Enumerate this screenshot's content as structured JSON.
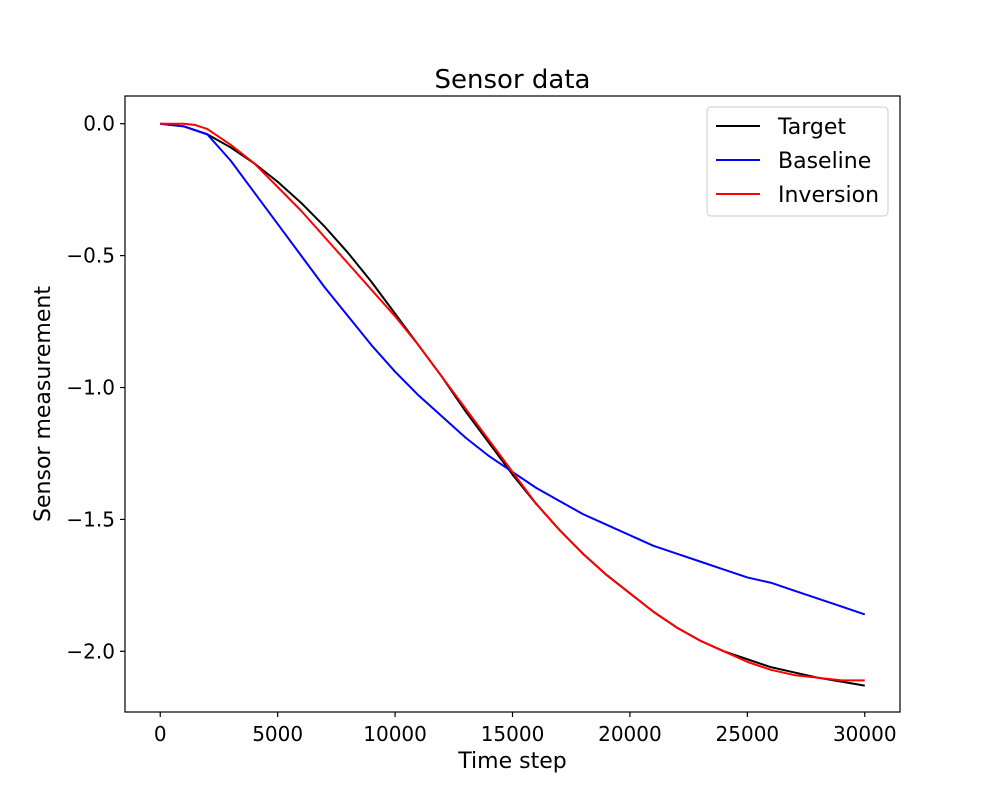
{
  "chart_data": {
    "type": "line",
    "title": "Sensor data",
    "xlabel": "Time step",
    "ylabel": "Sensor measurement",
    "xlim": [
      -1500,
      31500
    ],
    "ylim": [
      -2.23,
      0.105
    ],
    "x_ticks": [
      0,
      5000,
      10000,
      15000,
      20000,
      25000,
      30000
    ],
    "y_ticks": [
      0.0,
      -0.5,
      -1.0,
      -1.5,
      -2.0
    ],
    "x_tick_labels": [
      "0",
      "5000",
      "10000",
      "15000",
      "20000",
      "25000",
      "30000"
    ],
    "y_tick_labels": [
      "0.0",
      "−0.5",
      "−1.0",
      "−1.5",
      "−2.0"
    ],
    "grid": false,
    "legend_position": "top-right",
    "series": [
      {
        "name": "Target",
        "color": "#000000",
        "x": [
          0,
          1000,
          2000,
          3000,
          4000,
          5000,
          6000,
          7000,
          8000,
          9000,
          10000,
          11000,
          12000,
          13000,
          14000,
          15000,
          16000,
          17000,
          18000,
          19000,
          20000,
          21000,
          22000,
          23000,
          24000,
          25000,
          26000,
          27000,
          28000,
          29000,
          30000
        ],
        "y": [
          0.0,
          -0.01,
          -0.04,
          -0.09,
          -0.15,
          -0.22,
          -0.3,
          -0.39,
          -0.49,
          -0.6,
          -0.72,
          -0.84,
          -0.96,
          -1.09,
          -1.21,
          -1.33,
          -1.44,
          -1.54,
          -1.63,
          -1.71,
          -1.78,
          -1.85,
          -1.91,
          -1.96,
          -2.0,
          -2.03,
          -2.06,
          -2.08,
          -2.1,
          -2.115,
          -2.13
        ]
      },
      {
        "name": "Baseline",
        "color": "#0000ff",
        "x": [
          0,
          1000,
          2000,
          3000,
          4000,
          5000,
          6000,
          7000,
          8000,
          9000,
          10000,
          11000,
          12000,
          13000,
          14000,
          15000,
          16000,
          17000,
          18000,
          19000,
          20000,
          21000,
          22000,
          23000,
          24000,
          25000,
          26000,
          27000,
          28000,
          29000,
          30000
        ],
        "y": [
          0.0,
          -0.01,
          -0.04,
          -0.14,
          -0.26,
          -0.38,
          -0.5,
          -0.62,
          -0.73,
          -0.84,
          -0.94,
          -1.03,
          -1.11,
          -1.19,
          -1.26,
          -1.32,
          -1.38,
          -1.43,
          -1.48,
          -1.52,
          -1.56,
          -1.6,
          -1.63,
          -1.66,
          -1.69,
          -1.72,
          -1.74,
          -1.77,
          -1.8,
          -1.83,
          -1.86
        ]
      },
      {
        "name": "Inversion",
        "color": "#ff0000",
        "x": [
          0,
          1000,
          1500,
          2000,
          3000,
          4000,
          5000,
          6000,
          7000,
          8000,
          9000,
          10000,
          11000,
          12000,
          13000,
          14000,
          15000,
          16000,
          17000,
          18000,
          19000,
          20000,
          21000,
          22000,
          23000,
          24000,
          25000,
          26000,
          27000,
          28000,
          29000,
          30000
        ],
        "y": [
          0.0,
          0.0,
          -0.005,
          -0.02,
          -0.08,
          -0.15,
          -0.24,
          -0.33,
          -0.43,
          -0.53,
          -0.63,
          -0.73,
          -0.84,
          -0.96,
          -1.08,
          -1.2,
          -1.32,
          -1.44,
          -1.54,
          -1.63,
          -1.71,
          -1.78,
          -1.85,
          -1.91,
          -1.96,
          -2.0,
          -2.04,
          -2.07,
          -2.09,
          -2.1,
          -2.11,
          -2.11
        ]
      }
    ]
  }
}
